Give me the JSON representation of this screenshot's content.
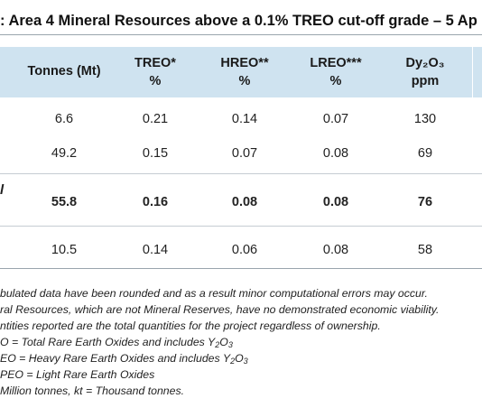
{
  "title": ": Area 4 Mineral Resources above a 0.1% TREO cut-off grade – 5 Ap",
  "table": {
    "headers": [
      {
        "line1": "Tonnes (Mt)",
        "line2": ""
      },
      {
        "line1": "TREO*",
        "line2": "%"
      },
      {
        "line1": "HREO**",
        "line2": "%"
      },
      {
        "line1": "LREO***",
        "line2": "%"
      },
      {
        "line1": "Dy₂O₃",
        "line2": "ppm"
      }
    ],
    "row_mark": "l",
    "rows": [
      {
        "tonnes": "6.6",
        "treo": "0.21",
        "hreo": "0.14",
        "lreo": "0.07",
        "dy": "130"
      },
      {
        "tonnes": "49.2",
        "treo": "0.15",
        "hreo": "0.07",
        "lreo": "0.08",
        "dy": "69"
      },
      {
        "tonnes": "55.8",
        "treo": "0.16",
        "hreo": "0.08",
        "lreo": "0.08",
        "dy": "76"
      },
      {
        "tonnes": "10.5",
        "treo": "0.14",
        "hreo": "0.06",
        "lreo": "0.08",
        "dy": "58"
      }
    ]
  },
  "notes": {
    "n1": "bulated data have been rounded and as a result minor computational errors may occur.",
    "n2": "ral Resources, which are not Mineral Reserves, have no demonstrated economic viability.",
    "n3": "ntities reported are the total quantities for the project regardless of ownership.",
    "n4_pre": "O = Total Rare Earth Oxides and includes Y",
    "n5_pre": "EO = Heavy Rare Earth Oxides and includes Y",
    "n6": "PEO = Light Rare Earth Oxides",
    "n7": " Million tonnes, kt = Thousand tonnes.",
    "sub_2": "2",
    "mid_O": "O",
    "sub_3": "3"
  },
  "colors": {
    "header_bg": "#cfe3f0",
    "rule": "#c5ccd2"
  }
}
